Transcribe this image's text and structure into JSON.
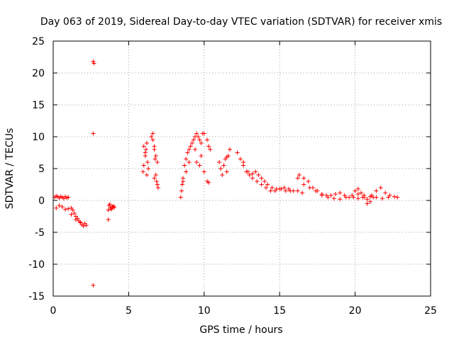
{
  "chart_data": {
    "type": "scatter",
    "title": "Day 063 of 2019, Sidereal Day-to-day VTEC variation (SDTVAR) for receiver xmis",
    "xlabel": "GPS time / hours",
    "ylabel": "SDTVAR / TECUs",
    "xlim": [
      0,
      25
    ],
    "ylim": [
      -15,
      25
    ],
    "xticks": [
      "0",
      "5",
      "10",
      "15",
      "20",
      "25"
    ],
    "yticks": [
      "-15",
      "-10",
      "-5",
      "0",
      "5",
      "10",
      "15",
      "20",
      "25"
    ],
    "grid": true,
    "marker": "+",
    "color": "#ff0000",
    "series": [
      {
        "name": "SDTVAR",
        "x": [
          0.1,
          0.2,
          0.3,
          0.4,
          0.5,
          0.6,
          0.7,
          0.8,
          0.9,
          1.0,
          0.2,
          0.4,
          0.6,
          0.8,
          1.0,
          1.2,
          1.3,
          1.4,
          1.5,
          1.6,
          1.7,
          1.8,
          1.9,
          2.0,
          2.1,
          2.2,
          1.2,
          1.5,
          1.8,
          2.65,
          2.7,
          2.65,
          2.65,
          3.65,
          3.7,
          3.8,
          3.9,
          4.0,
          4.05,
          3.75,
          3.85,
          3.95,
          3.65,
          5.95,
          6.0,
          6.1,
          6.15,
          6.2,
          6.25,
          6.3,
          6.0,
          6.2,
          6.1,
          6.5,
          6.6,
          6.7,
          6.75,
          6.8,
          6.85,
          6.9,
          6.95,
          6.7,
          6.8,
          6.9,
          6.6,
          6.7,
          8.45,
          8.5,
          8.55,
          8.6,
          8.7,
          8.8,
          8.9,
          9.0,
          9.1,
          9.2,
          9.3,
          9.4,
          9.5,
          9.6,
          9.7,
          9.8,
          9.9,
          10.0,
          8.6,
          8.8,
          9.0,
          9.4,
          9.8,
          10.2,
          10.3,
          10.4,
          10.2,
          9.5,
          9.7,
          10.0,
          10.3,
          11.0,
          11.1,
          11.2,
          11.3,
          11.4,
          11.5,
          11.6,
          11.7,
          11.5,
          12.2,
          12.4,
          12.6,
          12.8,
          13.0,
          13.2,
          13.4,
          13.6,
          13.8,
          14.0,
          14.2,
          14.5,
          14.8,
          15.1,
          15.4,
          15.7,
          12.6,
          12.9,
          13.2,
          13.5,
          13.8,
          14.1,
          14.4,
          14.7,
          15.0,
          15.3,
          15.6,
          15.9,
          16.2,
          16.5,
          16.3,
          16.6,
          16.9,
          17.2,
          17.5,
          17.8,
          18.1,
          18.4,
          18.7,
          19.0,
          19.3,
          19.6,
          19.9,
          20.2,
          20.5,
          20.8,
          21.1,
          21.4,
          21.7,
          22.0,
          22.3,
          22.6,
          22.8,
          20.0,
          20.2,
          20.4,
          20.6,
          20.8,
          21.0,
          21.2,
          16.2,
          16.6,
          17.0,
          17.4,
          17.8,
          18.2,
          18.6,
          19.0,
          19.4,
          19.8,
          20.2,
          20.6,
          21.0,
          21.4,
          21.8,
          22.2
        ],
        "y": [
          0.5,
          0.7,
          0.6,
          0.4,
          0.6,
          0.5,
          0.3,
          0.6,
          0.4,
          0.5,
          -1.2,
          -0.8,
          -1.0,
          -1.4,
          -1.3,
          -1.2,
          -1.5,
          -2.0,
          -2.5,
          -2.8,
          -3.2,
          -3.5,
          -3.8,
          -4.0,
          -3.6,
          -3.9,
          -2.2,
          -3.0,
          -3.4,
          21.8,
          21.5,
          10.5,
          -13.3,
          -1.5,
          -0.8,
          -1.2,
          -1.0,
          -0.9,
          -1.1,
          -0.6,
          -1.4,
          -1.0,
          -3.0,
          4.5,
          5.5,
          7.0,
          8.0,
          9.0,
          6.0,
          5.0,
          8.5,
          4.0,
          7.5,
          10.0,
          9.5,
          8.0,
          6.5,
          4.0,
          3.0,
          2.5,
          2.0,
          8.5,
          7.0,
          6.0,
          10.5,
          3.5,
          0.5,
          1.5,
          2.5,
          3.5,
          5.5,
          6.5,
          7.5,
          8.0,
          8.5,
          9.0,
          9.5,
          10.0,
          10.5,
          10.0,
          9.5,
          9.0,
          10.5,
          10.5,
          3.0,
          4.5,
          6.0,
          8.0,
          7.0,
          9.5,
          8.5,
          8.0,
          3.0,
          6.0,
          5.5,
          4.5,
          2.8,
          6.0,
          5.0,
          4.0,
          5.5,
          6.5,
          6.8,
          7.0,
          8.0,
          4.5,
          7.5,
          6.5,
          5.5,
          4.5,
          4.0,
          4.2,
          4.5,
          4.0,
          3.5,
          3.0,
          2.5,
          2.0,
          1.8,
          1.8,
          1.5,
          1.5,
          6.0,
          4.5,
          3.5,
          3.0,
          2.5,
          2.0,
          1.5,
          1.5,
          1.8,
          2.0,
          1.8,
          1.5,
          1.5,
          1.2,
          4.0,
          3.5,
          3.0,
          2.0,
          1.5,
          1.0,
          0.8,
          0.8,
          1.0,
          1.2,
          0.8,
          0.5,
          0.5,
          0.3,
          0.5,
          0.2,
          0.8,
          1.5,
          2.0,
          1.2,
          0.8,
          0.6,
          0.5,
          1.5,
          1.8,
          1.2,
          0.5,
          -0.5,
          -0.2,
          0.5,
          3.5,
          2.5,
          2.0,
          1.5,
          0.8,
          0.5,
          0.3,
          0.2,
          0.5,
          0.8,
          1.0,
          0.8,
          0.6,
          0.5,
          0.3,
          0.5
        ]
      }
    ]
  }
}
